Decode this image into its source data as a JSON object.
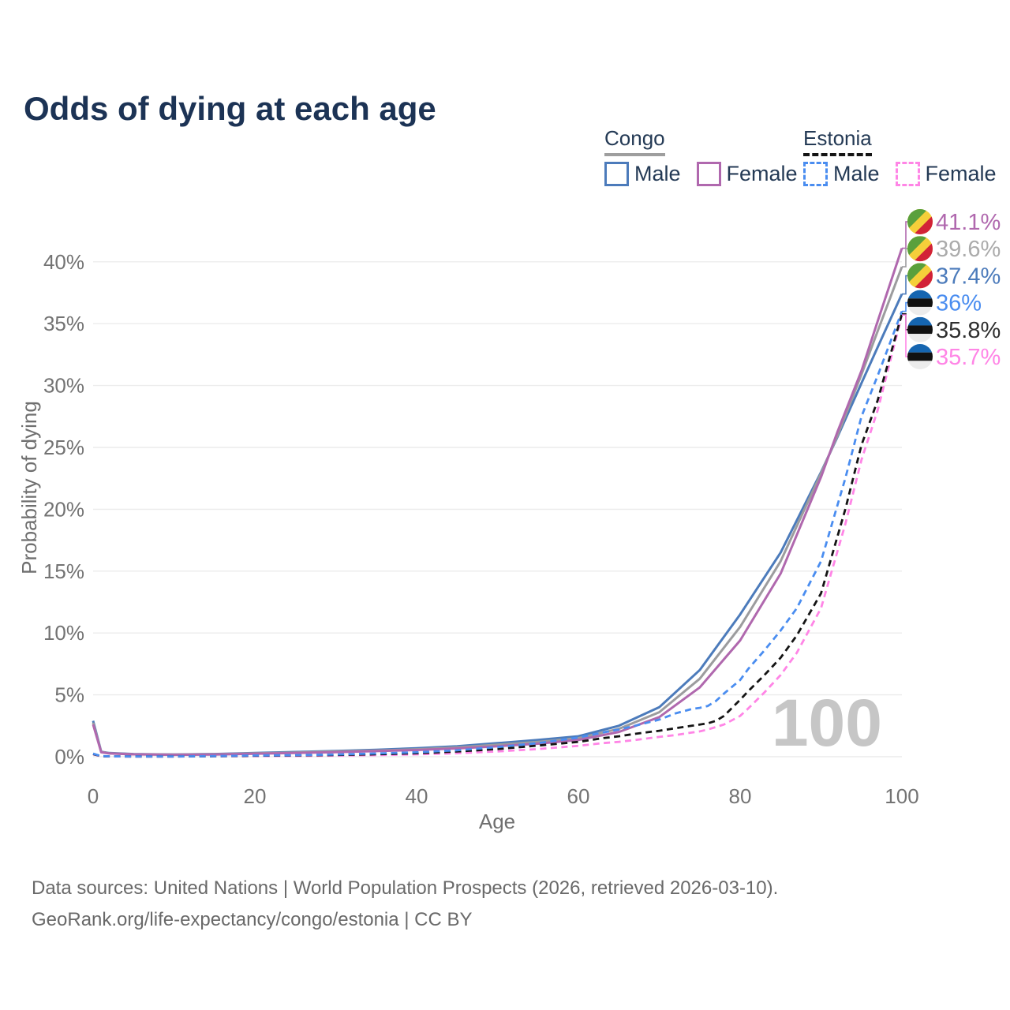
{
  "title": "Odds of dying at each age",
  "watermark": "100",
  "legend": {
    "groups": [
      {
        "name": "Congo",
        "line_style": "solid",
        "underline_color": "#9e9e9e",
        "items": [
          {
            "label": "Male",
            "color": "#4c7bbb",
            "dash": false
          },
          {
            "label": "Female",
            "color": "#b068ae",
            "dash": false
          }
        ]
      },
      {
        "name": "Estonia",
        "line_style": "dashed",
        "underline_color": "#141414",
        "items": [
          {
            "label": "Male",
            "color": "#4a8df0",
            "dash": true
          },
          {
            "label": "Female",
            "color": "#ff85e6",
            "dash": true
          }
        ]
      }
    ]
  },
  "footer": {
    "line1": "Data sources: United Nations | World Population Prospects (2026, retrieved 2026-03-10).",
    "line2": "GeoRank.org/life-expectancy/congo/estonia | CC BY"
  },
  "chart_data": {
    "type": "line",
    "title": "Odds of dying at each age",
    "xlabel": "Age",
    "ylabel": "Probability of dying",
    "xlim": [
      0,
      100
    ],
    "ylim": [
      0,
      44
    ],
    "xticks": [
      0,
      20,
      40,
      60,
      80,
      100
    ],
    "yticks": [
      0,
      5,
      10,
      15,
      20,
      25,
      30,
      35,
      40
    ],
    "ytick_suffix": "%",
    "grid": "horizontal",
    "legend_position": "top-right",
    "series": [
      {
        "name": "Congo Male",
        "country": "congo",
        "sex": "male",
        "color": "#4c7bbb",
        "label_color": "#4c7bbb",
        "dash": false,
        "end_label": "37.4%",
        "x": [
          0,
          1,
          2,
          5,
          10,
          15,
          20,
          25,
          30,
          35,
          40,
          45,
          50,
          55,
          60,
          65,
          70,
          75,
          80,
          85,
          90,
          92,
          95,
          97,
          100
        ],
        "y": [
          2.9,
          0.4,
          0.3,
          0.22,
          0.18,
          0.22,
          0.3,
          0.38,
          0.46,
          0.56,
          0.68,
          0.85,
          1.1,
          1.35,
          1.65,
          2.5,
          4.0,
          7.0,
          11.5,
          16.5,
          23.0,
          25.8,
          30.2,
          33.1,
          37.4
        ]
      },
      {
        "name": "Congo Overall",
        "country": "congo",
        "sex": "all",
        "color": "#9c9c9e",
        "label_color": "#ababab",
        "dash": false,
        "end_label": "39.6%",
        "x": [
          0,
          1,
          2,
          5,
          10,
          15,
          20,
          25,
          30,
          35,
          40,
          45,
          50,
          55,
          60,
          65,
          70,
          75,
          80,
          85,
          90,
          92,
          95,
          97,
          100
        ],
        "y": [
          2.75,
          0.38,
          0.28,
          0.2,
          0.17,
          0.2,
          0.27,
          0.34,
          0.42,
          0.5,
          0.6,
          0.75,
          0.97,
          1.2,
          1.5,
          2.25,
          3.6,
          6.3,
          10.5,
          15.8,
          22.9,
          25.9,
          30.9,
          34.4,
          39.6
        ]
      },
      {
        "name": "Congo Female",
        "country": "congo",
        "sex": "female",
        "color": "#b068ae",
        "label_color": "#b068ae",
        "dash": false,
        "end_label": "41.1%",
        "x": [
          0,
          1,
          2,
          5,
          10,
          15,
          20,
          25,
          30,
          35,
          40,
          45,
          50,
          55,
          60,
          65,
          70,
          75,
          80,
          85,
          90,
          92,
          95,
          97,
          100
        ],
        "y": [
          2.6,
          0.36,
          0.26,
          0.19,
          0.15,
          0.18,
          0.24,
          0.3,
          0.37,
          0.45,
          0.54,
          0.67,
          0.85,
          1.05,
          1.35,
          2.0,
          3.2,
          5.6,
          9.4,
          14.8,
          22.6,
          26.2,
          31.2,
          35.2,
          41.1
        ]
      },
      {
        "name": "Estonia Female",
        "country": "estonia",
        "sex": "female",
        "color": "#ff85e6",
        "label_color": "#ff85e6",
        "dash": true,
        "end_label": "35.7%",
        "x": [
          0,
          1,
          2,
          5,
          10,
          15,
          20,
          25,
          30,
          35,
          40,
          45,
          50,
          55,
          60,
          63,
          65,
          67,
          70,
          72,
          74,
          75,
          76,
          77,
          78,
          80,
          81,
          83,
          85,
          87,
          90,
          93,
          95,
          97,
          100
        ],
        "y": [
          0.2,
          0.035,
          0.02,
          0.013,
          0.015,
          0.03,
          0.05,
          0.06,
          0.09,
          0.13,
          0.19,
          0.28,
          0.43,
          0.62,
          0.88,
          1.1,
          1.2,
          1.35,
          1.6,
          1.75,
          1.95,
          2.05,
          2.2,
          2.4,
          2.6,
          3.3,
          3.9,
          5.2,
          6.6,
          8.4,
          12.0,
          18.8,
          24.0,
          28.0,
          35.7
        ]
      },
      {
        "name": "Estonia Overall",
        "country": "estonia",
        "sex": "all",
        "color": "#141414",
        "label_color": "#2e2e2e",
        "dash": true,
        "end_label": "35.8%",
        "x": [
          0,
          1,
          2,
          5,
          10,
          15,
          20,
          25,
          30,
          35,
          40,
          45,
          50,
          55,
          60,
          63,
          65,
          67,
          70,
          72,
          74,
          75,
          76,
          77,
          78,
          80,
          81,
          83,
          85,
          87,
          90,
          93,
          95,
          97,
          100
        ],
        "y": [
          0.22,
          0.04,
          0.025,
          0.016,
          0.018,
          0.04,
          0.08,
          0.1,
          0.14,
          0.2,
          0.28,
          0.42,
          0.62,
          0.9,
          1.2,
          1.5,
          1.65,
          1.85,
          2.1,
          2.3,
          2.5,
          2.6,
          2.7,
          2.9,
          3.3,
          4.6,
          5.3,
          6.6,
          8.0,
          9.8,
          13.2,
          20.0,
          25.2,
          28.8,
          35.8
        ]
      },
      {
        "name": "Estonia Male",
        "country": "estonia",
        "sex": "male",
        "color": "#4a8df0",
        "label_color": "#4a8df0",
        "dash": true,
        "end_label": "36%",
        "x": [
          0,
          1,
          2,
          5,
          10,
          15,
          20,
          25,
          30,
          35,
          40,
          45,
          50,
          55,
          60,
          63,
          65,
          67,
          70,
          72,
          74,
          75,
          76,
          77,
          78,
          80,
          81,
          83,
          85,
          87,
          90,
          93,
          95,
          97,
          100
        ],
        "y": [
          0.25,
          0.05,
          0.03,
          0.02,
          0.02,
          0.05,
          0.1,
          0.13,
          0.18,
          0.26,
          0.36,
          0.52,
          0.78,
          1.1,
          1.55,
          1.95,
          2.2,
          2.5,
          3.0,
          3.5,
          3.85,
          3.95,
          4.1,
          4.5,
          5.1,
          6.2,
          7.1,
          8.6,
          10.2,
          12.0,
          15.8,
          22.5,
          27.5,
          30.8,
          36.0
        ]
      }
    ],
    "flag_colors": {
      "congo": {
        "green": "#5aa03c",
        "yellow": "#f5cf3a",
        "red": "#d22237"
      },
      "estonia": {
        "blue": "#1565b0",
        "black": "#111111",
        "white": "#ececec"
      }
    },
    "grid_color": "#ececec",
    "tick_color": "#737373",
    "axis_title_color": "#6f6f6f",
    "watermark_color": "#c6c6c6"
  }
}
